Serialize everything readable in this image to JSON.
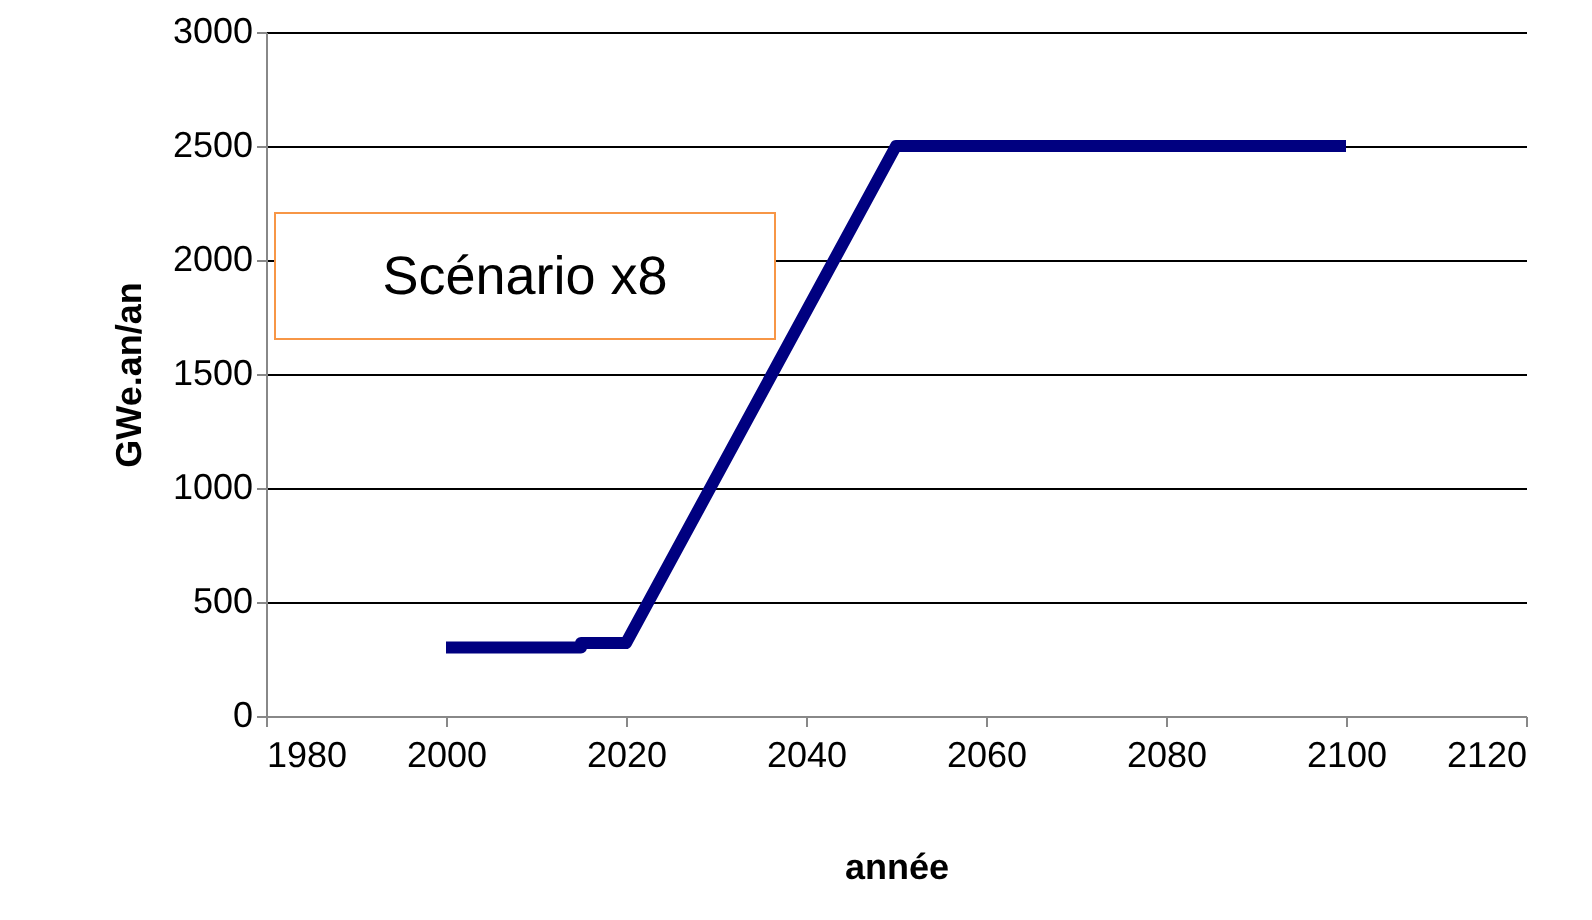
{
  "chart_data": {
    "type": "line",
    "xlabel": "année",
    "ylabel": "GWe.an/an",
    "annotations": [
      "Scénario x8"
    ],
    "x": [
      2000,
      2015,
      2015,
      2020,
      2050,
      2100
    ],
    "series": [
      {
        "color": "#000080",
        "values": [
          300,
          300,
          320,
          320,
          2500,
          2500
        ]
      }
    ],
    "xlim": [
      1980,
      2120
    ],
    "xticks": [
      1980,
      2000,
      2020,
      2040,
      2060,
      2080,
      2100,
      2120
    ],
    "ylim": [
      0,
      3000
    ],
    "yticks": [
      0,
      500,
      1000,
      1500,
      2000,
      2500,
      3000
    ],
    "grid": "y",
    "marker": "none",
    "line_style": "solid"
  }
}
